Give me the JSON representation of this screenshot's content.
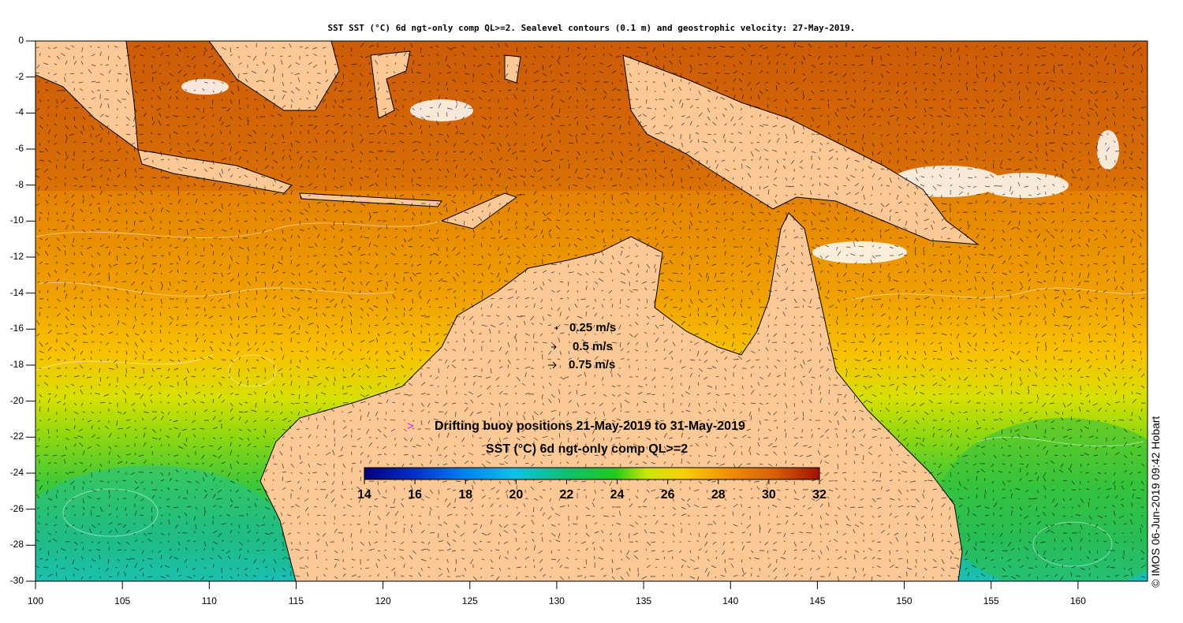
{
  "title": "SST SST (°C) 6d ngt-only comp QL>=2. Sealevel contours (0.1 m) and geostrophic velocity: 27-May-2019.",
  "credit": "© IMOS 06-Jun-2019 09:42 Hobart",
  "axes": {
    "x_ticks": [
      "100",
      "105",
      "110",
      "115",
      "120",
      "125",
      "130",
      "135",
      "140",
      "145",
      "150",
      "155",
      "160"
    ],
    "y_ticks": [
      "0",
      "-2",
      "-4",
      "-6",
      "-8",
      "-10",
      "-12",
      "-14",
      "-16",
      "-18",
      "-20",
      "-22",
      "-24",
      "-26",
      "-28",
      "-30"
    ],
    "lon_range": [
      100,
      164
    ],
    "lat_range": [
      -30,
      0
    ]
  },
  "velocity_legend": [
    {
      "label": "0.25 m/s"
    },
    {
      "label": "0.5 m/s"
    },
    {
      "label": "0.75 m/s"
    }
  ],
  "buoy_legend": {
    "symbol": ">",
    "label": "Drifting buoy positions 21-May-2019 to 31-May-2019",
    "color": "#e020e0"
  },
  "colorbar": {
    "title": "SST (°C) 6d ngt-only comp QL>=2",
    "ticks": [
      "14",
      "16",
      "18",
      "20",
      "22",
      "24",
      "26",
      "28",
      "30",
      "32"
    ],
    "range": [
      14,
      32
    ]
  },
  "colors": {
    "land": "#fcc896",
    "sst_warm": "#d96a0c",
    "sst_mid": "#f5a000",
    "sst_cool": "#1ec83c"
  }
}
